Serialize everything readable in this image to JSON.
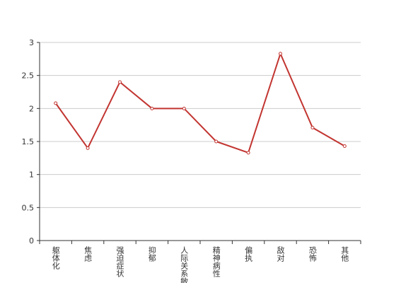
{
  "chart_data": {
    "type": "line",
    "categories": [
      "躯体化",
      "焦虑",
      "强迫症状",
      "抑郁",
      "人际关系敏感",
      "精神病性",
      "偏执",
      "敌对",
      "恐怖",
      "其他"
    ],
    "series": [
      {
        "color": "#c23531",
        "values": [
          2.08,
          1.4,
          2.4,
          2.0,
          2.0,
          1.5,
          1.33,
          2.83,
          1.71,
          1.43
        ]
      }
    ],
    "ylim": [
      0,
      3
    ],
    "yticks": [
      0,
      0.5,
      1,
      1.5,
      2,
      2.5,
      3
    ],
    "grid": true
  }
}
